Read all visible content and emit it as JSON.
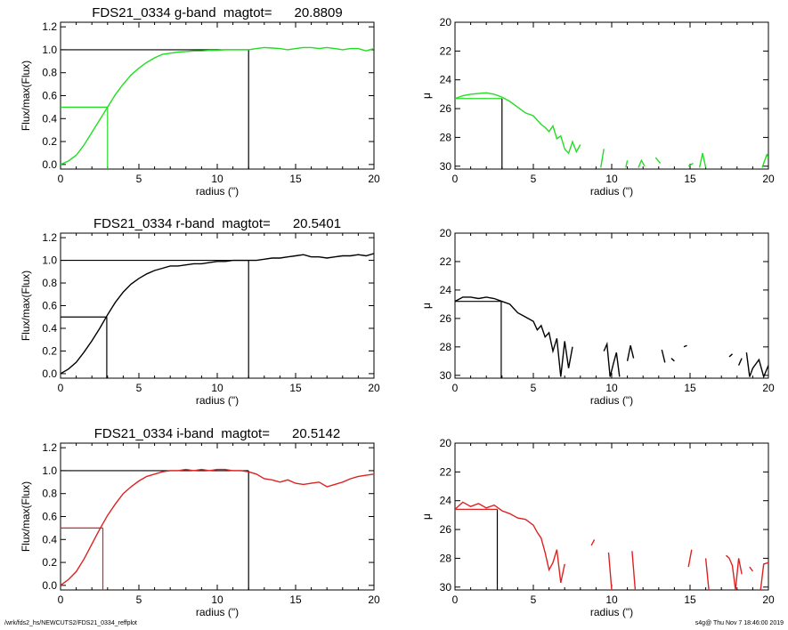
{
  "footer": {
    "left": "/wrk/fds2_hs/NEWCUTS2/FDS21_0334_reffplot",
    "right": "s4g@  Thu Nov  7 18:46:00 2019"
  },
  "chart_data": [
    {
      "type": "line",
      "panel": "growth-curve",
      "band": "g",
      "title": "FDS21_0334 g-band  magtot=      20.8809",
      "xlabel": "radius (\")",
      "ylabel": "Flux/max(Flux)",
      "xlim": [
        0,
        20
      ],
      "ylim": [
        -0.04,
        1.24
      ],
      "xticks": [
        "0",
        "5",
        "10",
        "15",
        "20"
      ],
      "yticks": [
        "0.0",
        "0.2",
        "0.4",
        "0.6",
        "0.8",
        "1.0",
        "1.2"
      ],
      "color": "#22dd22",
      "total_radius": 12.0,
      "half_light_radius": 3.0,
      "x": [
        0,
        0.5,
        1,
        1.5,
        2,
        2.5,
        3,
        3.5,
        4,
        4.5,
        5,
        5.5,
        6,
        6.5,
        7,
        7.5,
        8,
        8.5,
        9,
        9.5,
        10,
        10.5,
        11,
        11.5,
        12,
        12.5,
        13,
        13.5,
        14,
        14.5,
        15,
        15.5,
        16,
        16.5,
        17,
        17.5,
        18,
        18.5,
        19,
        19.5,
        20
      ],
      "y": [
        0.0,
        0.03,
        0.08,
        0.17,
        0.28,
        0.39,
        0.5,
        0.61,
        0.7,
        0.78,
        0.84,
        0.89,
        0.93,
        0.96,
        0.97,
        0.98,
        0.985,
        0.99,
        0.99,
        0.995,
        0.995,
        1.0,
        1.0,
        1.0,
        1.0,
        1.01,
        1.02,
        1.015,
        1.01,
        1.0,
        1.01,
        1.02,
        1.02,
        1.01,
        1.02,
        1.01,
        1.0,
        1.01,
        1.01,
        0.99,
        1.01
      ]
    },
    {
      "type": "line",
      "panel": "surface-brightness",
      "band": "g",
      "xlabel": "radius (\")",
      "ylabel": "μ",
      "xlim": [
        0,
        20
      ],
      "ylim": [
        20,
        30.2
      ],
      "yreversed": true,
      "xticks": [
        "0",
        "5",
        "10",
        "15",
        "20"
      ],
      "yticks": [
        "20",
        "22",
        "24",
        "26",
        "28",
        "30"
      ],
      "color": "#22dd22",
      "marker_radius": 3.0,
      "marker_mu": 25.3,
      "segments": [
        {
          "x": [
            0,
            0.5,
            1,
            1.5,
            2,
            2.5,
            3,
            3.5,
            4,
            4.5,
            5,
            5.25,
            5.5,
            5.75,
            6,
            6.25,
            6.5,
            6.75,
            7,
            7.25,
            7.5,
            7.75,
            8
          ],
          "y": [
            25.3,
            25.1,
            25.0,
            24.95,
            24.9,
            25.0,
            25.2,
            25.5,
            25.9,
            26.3,
            26.5,
            26.8,
            27.1,
            27.3,
            27.6,
            27.2,
            28.1,
            27.9,
            28.8,
            29.1,
            28.3,
            29.0,
            28.5
          ]
        },
        {
          "x": [
            9.3,
            9.5
          ],
          "y": [
            30.1,
            28.8
          ]
        },
        {
          "x": [
            10.9,
            11.0
          ],
          "y": [
            30.1,
            29.6
          ]
        },
        {
          "x": [
            11.7,
            11.9,
            12.1
          ],
          "y": [
            30.1,
            29.6,
            30.0
          ]
        },
        {
          "x": [
            12.8,
            13.1
          ],
          "y": [
            29.4,
            29.8
          ]
        },
        {
          "x": [
            14.9,
            15.2
          ],
          "y": [
            30.0,
            29.8
          ]
        },
        {
          "x": [
            15.6,
            15.8,
            16.0
          ],
          "y": [
            30.1,
            29.1,
            30.1
          ]
        },
        {
          "x": [
            19.6,
            19.9,
            20.0
          ],
          "y": [
            30.1,
            29.2,
            29.4
          ]
        }
      ]
    },
    {
      "type": "line",
      "panel": "growth-curve",
      "band": "r",
      "title": "FDS21_0334 r-band  magtot=      20.5401",
      "xlabel": "radius (\")",
      "ylabel": "Flux/max(Flux)",
      "xlim": [
        0,
        20
      ],
      "ylim": [
        -0.04,
        1.24
      ],
      "xticks": [
        "0",
        "5",
        "10",
        "15",
        "20"
      ],
      "yticks": [
        "0.0",
        "0.2",
        "0.4",
        "0.6",
        "0.8",
        "1.0",
        "1.2"
      ],
      "color": "#000000",
      "total_radius": 12.0,
      "half_light_radius": 2.95,
      "x": [
        0,
        0.5,
        1,
        1.5,
        2,
        2.5,
        3,
        3.5,
        4,
        4.5,
        5,
        5.5,
        6,
        6.5,
        7,
        7.5,
        8,
        8.5,
        9,
        9.5,
        10,
        10.5,
        11,
        11.5,
        12,
        12.5,
        13,
        13.5,
        14,
        14.5,
        15,
        15.5,
        16,
        16.5,
        17,
        17.5,
        18,
        18.5,
        19,
        19.5,
        20
      ],
      "y": [
        0.0,
        0.04,
        0.1,
        0.19,
        0.29,
        0.4,
        0.52,
        0.63,
        0.72,
        0.79,
        0.84,
        0.88,
        0.91,
        0.93,
        0.95,
        0.95,
        0.96,
        0.97,
        0.97,
        0.98,
        0.99,
        0.99,
        1.0,
        1.0,
        1.0,
        1.0,
        1.01,
        1.02,
        1.02,
        1.03,
        1.04,
        1.05,
        1.03,
        1.03,
        1.02,
        1.03,
        1.04,
        1.04,
        1.05,
        1.04,
        1.06
      ]
    },
    {
      "type": "line",
      "panel": "surface-brightness",
      "band": "r",
      "xlabel": "radius (\")",
      "ylabel": "μ",
      "xlim": [
        0,
        20
      ],
      "ylim": [
        20,
        30.2
      ],
      "yreversed": true,
      "xticks": [
        "0",
        "5",
        "10",
        "15",
        "20"
      ],
      "yticks": [
        "20",
        "22",
        "24",
        "26",
        "28",
        "30"
      ],
      "color": "#000000",
      "marker_radius": 2.95,
      "marker_mu": 24.8,
      "segments": [
        {
          "x": [
            0,
            0.5,
            1,
            1.5,
            2,
            2.5,
            3,
            3.5,
            4,
            4.5,
            5,
            5.25,
            5.5,
            5.75,
            6,
            6.25,
            6.5,
            6.75,
            7,
            7.25,
            7.5
          ],
          "y": [
            24.8,
            24.5,
            24.5,
            24.6,
            24.5,
            24.6,
            24.8,
            25.0,
            25.6,
            25.9,
            26.2,
            26.8,
            26.5,
            27.3,
            27.0,
            28.3,
            27.4,
            30.1,
            27.6,
            29.5,
            28.0
          ]
        },
        {
          "x": [
            9.5,
            9.7,
            9.9,
            10.1,
            10.3,
            10.5
          ],
          "y": [
            28.3,
            27.8,
            30.1,
            29.2,
            28.4,
            30.1
          ]
        },
        {
          "x": [
            11.0,
            11.2,
            11.4
          ],
          "y": [
            29.0,
            27.9,
            28.8
          ]
        },
        {
          "x": [
            13.2,
            13.4
          ],
          "y": [
            28.2,
            29.1
          ]
        },
        {
          "x": [
            13.8,
            14.0
          ],
          "y": [
            28.8,
            29.0
          ]
        },
        {
          "x": [
            14.6,
            14.8
          ],
          "y": [
            28.0,
            27.9
          ]
        },
        {
          "x": [
            17.5,
            17.7
          ],
          "y": [
            28.7,
            28.5
          ]
        },
        {
          "x": [
            18.1,
            18.3
          ],
          "y": [
            29.3,
            28.8
          ]
        },
        {
          "x": [
            18.6,
            18.8,
            19.0,
            19.2,
            19.4,
            19.7,
            20.0
          ],
          "y": [
            28.4,
            30.1,
            29.5,
            29.2,
            28.9,
            30.1,
            29.3
          ]
        }
      ]
    },
    {
      "type": "line",
      "panel": "growth-curve",
      "band": "i",
      "title": "FDS21_0334 i-band  magtot=      20.5142",
      "xlabel": "radius (\")",
      "ylabel": "Flux/max(Flux)",
      "xlim": [
        0,
        20
      ],
      "ylim": [
        -0.04,
        1.24
      ],
      "xticks": [
        "0",
        "5",
        "10",
        "15",
        "20"
      ],
      "yticks": [
        "0.0",
        "0.2",
        "0.4",
        "0.6",
        "0.8",
        "1.0",
        "1.2"
      ],
      "color": "#dd2222",
      "total_radius": 12.0,
      "half_light_radius": 2.7,
      "x": [
        0,
        0.5,
        1,
        1.5,
        2,
        2.5,
        3,
        3.5,
        4,
        4.5,
        5,
        5.5,
        6,
        6.5,
        7,
        7.5,
        8,
        8.5,
        9,
        9.5,
        10,
        10.5,
        11,
        11.5,
        12,
        12.5,
        13,
        13.5,
        14,
        14.5,
        15,
        15.5,
        16,
        16.5,
        17,
        17.5,
        18,
        18.5,
        19,
        19.5,
        20
      ],
      "y": [
        0.0,
        0.05,
        0.12,
        0.23,
        0.36,
        0.49,
        0.61,
        0.71,
        0.8,
        0.86,
        0.91,
        0.95,
        0.97,
        0.99,
        1.0,
        1.0,
        1.01,
        1.0,
        1.01,
        1.0,
        1.01,
        1.01,
        1.0,
        1.0,
        0.99,
        0.97,
        0.93,
        0.92,
        0.9,
        0.92,
        0.89,
        0.88,
        0.89,
        0.9,
        0.86,
        0.88,
        0.9,
        0.93,
        0.95,
        0.96,
        0.97
      ]
    },
    {
      "type": "line",
      "panel": "surface-brightness",
      "band": "i",
      "xlabel": "radius (\")",
      "ylabel": "μ",
      "xlim": [
        0,
        20
      ],
      "ylim": [
        20,
        30.2
      ],
      "yreversed": true,
      "xticks": [
        "0",
        "5",
        "10",
        "15",
        "20"
      ],
      "yticks": [
        "20",
        "22",
        "24",
        "26",
        "28",
        "30"
      ],
      "color": "#dd2222",
      "marker_radius": 2.7,
      "marker_mu": 24.6,
      "segments": [
        {
          "x": [
            0,
            0.5,
            1,
            1.5,
            2,
            2.5,
            3,
            3.5,
            4,
            4.5,
            5,
            5.25,
            5.5,
            5.75,
            6,
            6.25,
            6.5,
            6.75,
            7
          ],
          "y": [
            24.6,
            24.1,
            24.4,
            24.2,
            24.5,
            24.3,
            24.7,
            24.9,
            25.2,
            25.3,
            25.7,
            26.2,
            26.6,
            27.6,
            28.8,
            28.3,
            27.4,
            29.7,
            28.4
          ]
        },
        {
          "x": [
            8.7,
            8.9
          ],
          "y": [
            27.1,
            26.7
          ]
        },
        {
          "x": [
            9.8,
            10.0
          ],
          "y": [
            27.6,
            30.2
          ]
        },
        {
          "x": [
            11.3,
            11.5
          ],
          "y": [
            27.5,
            30.2
          ]
        },
        {
          "x": [
            14.9,
            15.1
          ],
          "y": [
            28.6,
            27.4
          ]
        },
        {
          "x": [
            16.0,
            16.2
          ],
          "y": [
            28.0,
            30.2
          ]
        },
        {
          "x": [
            17.3,
            17.5,
            17.7,
            17.9,
            18.1,
            18.3
          ],
          "y": [
            27.8,
            28.0,
            28.5,
            30.2,
            28.0,
            29.1
          ]
        },
        {
          "x": [
            18.8,
            19.0
          ],
          "y": [
            28.6,
            28.9
          ]
        },
        {
          "x": [
            19.5,
            19.7,
            20.0
          ],
          "y": [
            30.2,
            28.4,
            28.3
          ]
        }
      ]
    }
  ]
}
